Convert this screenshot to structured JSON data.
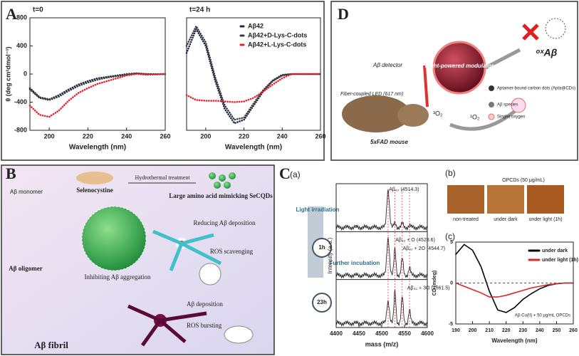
{
  "panels": {
    "A": {
      "label": "A",
      "left_title": "t=0",
      "right_title": "t=24 h"
    },
    "B": {
      "label": "B",
      "monomer": "Aβ monomer",
      "precursor": "Selenocystine",
      "process": "Hydrothermal treatment",
      "product": "Large amino acid mimicking SeCQDs",
      "reducing": "Reducing Aβ deposition",
      "scavenging": "ROS scavenging",
      "inhibiting": "Inhibiting Aβ aggregation",
      "oligomer": "Aβ oligomer",
      "deposition": "Aβ deposition",
      "bursting": "ROS bursting",
      "fibril": "Aβ fibril"
    },
    "C": {
      "label": "C",
      "sub_a": "(a)",
      "sub_b": "(b)",
      "sub_c": "(c)",
      "light": "Light irradiation",
      "time1": "1h",
      "further": "Further incubation",
      "time2": "23h",
      "b_header": "OPCDs (50 μg/mL)",
      "b_captions": [
        "non-treated",
        "under dark",
        "under light (1h)"
      ]
    },
    "D": {
      "label": "D",
      "detector": "Aβ detector",
      "modulator": "Light-powered modulator",
      "led": "Fiber-coupled LED (617 nm)",
      "mouse": "5xFAD mouse",
      "triplet": "³O₂",
      "singlet": "¹O₂",
      "ox": "ᵒˣAβ",
      "legend": [
        "Aptamer-bound carbon dots (Apta@CDs)",
        "Aβ species",
        "Singlet oxygen"
      ]
    }
  },
  "chart_data": [
    {
      "type": "line",
      "x_label": "Wavelength (nm)",
      "y_label": "θ (deg cm²dmol⁻¹)",
      "xlim": [
        190,
        260
      ],
      "xticks": [
        200,
        220,
        240,
        260
      ],
      "ylim": [
        -800,
        800
      ],
      "yticks": [
        -800,
        -400,
        0,
        400,
        800
      ],
      "x": [
        190,
        195,
        200,
        205,
        210,
        215,
        220,
        225,
        230,
        235,
        240,
        245,
        250,
        255,
        260
      ],
      "series": [
        {
          "color": "#1f2a4a",
          "values": [
            -200,
            -330,
            -360,
            -300,
            -220,
            -150,
            -100,
            -60,
            -40,
            -20,
            0,
            10,
            0,
            -5,
            0
          ]
        },
        {
          "color": "#3a3a3a",
          "values": [
            -220,
            -340,
            -370,
            -320,
            -240,
            -170,
            -120,
            -80,
            -50,
            -30,
            -10,
            10,
            0,
            0,
            0
          ]
        },
        {
          "color": "#e8202a",
          "values": [
            -450,
            -580,
            -610,
            -520,
            -380,
            -270,
            -200,
            -140,
            -100,
            -60,
            -20,
            0,
            -10,
            -5,
            0
          ]
        }
      ]
    },
    {
      "type": "line",
      "x_label": "Wavelength (nm)",
      "legend": "upper right",
      "xlim": [
        190,
        260
      ],
      "xticks": [
        200,
        220,
        240,
        260
      ],
      "ylim": [
        -800,
        800
      ],
      "x": [
        190,
        195,
        200,
        205,
        210,
        215,
        220,
        225,
        230,
        235,
        240,
        245,
        250,
        255,
        260
      ],
      "series": [
        {
          "name": "Aβ42",
          "color": "#1f2a4a",
          "values": [
            300,
            640,
            400,
            -100,
            -500,
            -700,
            -650,
            -450,
            -250,
            -100,
            -20,
            0,
            0,
            0,
            0
          ]
        },
        {
          "name": "Aβ42+D-Lys-C-dots",
          "color": "#3a3a3a",
          "values": [
            400,
            680,
            450,
            -50,
            -450,
            -650,
            -620,
            -420,
            -230,
            -90,
            -10,
            0,
            0,
            0,
            0
          ]
        },
        {
          "name": "Aβ42+L-Lys-C-dots",
          "color": "#e8202a",
          "values": [
            -300,
            -370,
            -380,
            -380,
            -390,
            -400,
            -390,
            -340,
            -250,
            -150,
            -60,
            0,
            0,
            0,
            0
          ]
        }
      ]
    },
    {
      "type": "spectrum",
      "x_label": "mass (m/z)",
      "y_label": "Intensity (a.u.)",
      "xlim": [
        4400,
        4600
      ],
      "xticks": [
        4400,
        4450,
        4500,
        4550,
        4600
      ],
      "annotations": [
        "Aβ₄₂ (4514.3)",
        "Aβ₄₂ + O (4528.6)",
        "Aβ₄₂ + 2O (4544.7)",
        "Aβ₄₂ + 3O (4561.5)"
      ]
    },
    {
      "type": "line",
      "x_label": "Wavelength (nm)",
      "y_label": "CD (mdeg)",
      "legend": "upper right",
      "annotation": "Aβ-Cu(II) + 50 μg/mL OPCDs",
      "xlim": [
        190,
        260
      ],
      "xticks": [
        190,
        200,
        210,
        220,
        230,
        240,
        250,
        260
      ],
      "ylim": [
        -5,
        5
      ],
      "yticks": [
        -5,
        0,
        5
      ],
      "x": [
        190,
        195,
        200,
        205,
        210,
        215,
        220,
        225,
        230,
        235,
        240,
        245,
        250,
        255,
        260
      ],
      "series": [
        {
          "name": "under dark",
          "color": "#000000",
          "values": [
            3.5,
            4.7,
            4,
            2,
            -1,
            -3.3,
            -3.6,
            -3,
            -2,
            -1.3,
            -0.7,
            -0.3,
            -0.1,
            0,
            0
          ]
        },
        {
          "name": "under light (1h)",
          "color": "#d8282a",
          "values": [
            0,
            -0.4,
            -0.8,
            -1.2,
            -1.7,
            -1.7,
            -1.5,
            -1.2,
            -0.9,
            -0.6,
            -0.4,
            -0.2,
            -0.1,
            0,
            0
          ]
        }
      ]
    }
  ]
}
